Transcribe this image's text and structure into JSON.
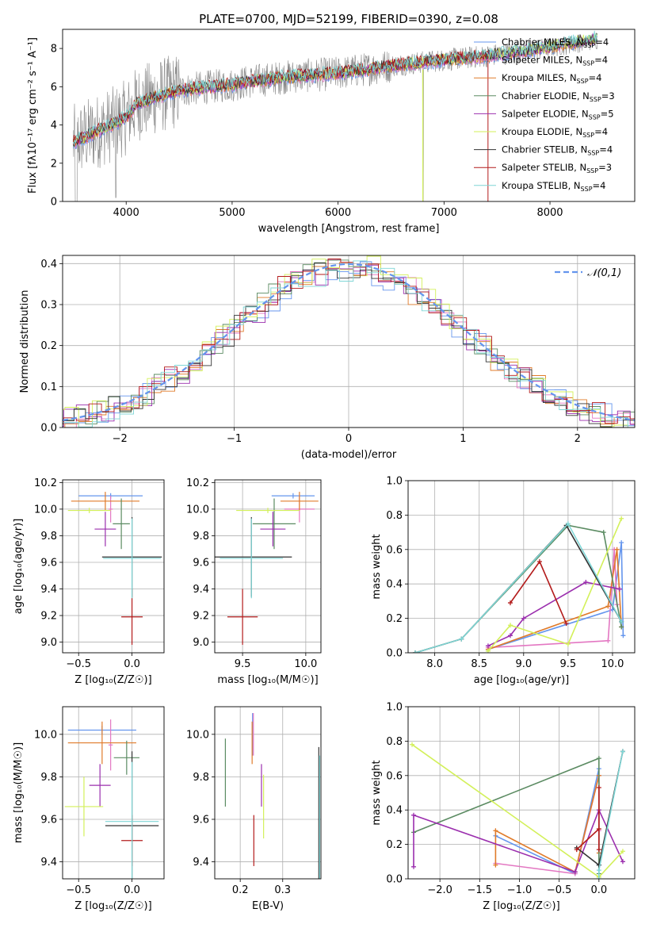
{
  "figure": {
    "title": "PLATE=0700, MJD=52199, FIBERID=0390, z=0.08"
  },
  "palette": [
    "#6495ed",
    "#e377c2",
    "#e07b2a",
    "#5b8b62",
    "#9b2fae",
    "#d3f05a",
    "#333333",
    "#b31b1b",
    "#7fd6d6"
  ],
  "models": [
    {
      "name": "Chabrier MILES, N_SSP=4",
      "label": "Chabrier MILES, N",
      "sub": "SSP",
      "n": "=4",
      "color": "#6495ed"
    },
    {
      "name": "Salpeter MILES, N_SSP=4",
      "label": "Salpeter MILES, N",
      "sub": "SSP",
      "n": "=4",
      "color": "#e377c2"
    },
    {
      "name": "Kroupa MILES, N_SSP=4",
      "label": "Kroupa MILES, N",
      "sub": "SSP",
      "n": "=4",
      "color": "#e07b2a"
    },
    {
      "name": "Chabrier ELODIE, N_SSP=3",
      "label": "Chabrier ELODIE, N",
      "sub": "SSP",
      "n": "=3",
      "color": "#5b8b62"
    },
    {
      "name": "Salpeter ELODIE, N_SSP=5",
      "label": "Salpeter ELODIE, N",
      "sub": "SSP",
      "n": "=5",
      "color": "#9b2fae"
    },
    {
      "name": "Kroupa ELODIE, N_SSP=4",
      "label": "Kroupa ELODIE, N",
      "sub": "SSP",
      "n": "=4",
      "color": "#d3f05a"
    },
    {
      "name": "Chabrier STELIB, N_SSP=4",
      "label": "Chabrier STELIB, N",
      "sub": "SSP",
      "n": "=4",
      "color": "#333333"
    },
    {
      "name": "Salpeter STELIB, N_SSP=3",
      "label": "Salpeter STELIB, N",
      "sub": "SSP",
      "n": "=3",
      "color": "#b31b1b"
    },
    {
      "name": "Kroupa STELIB, N_SSP=4",
      "label": "Kroupa STELIB, N",
      "sub": "SSP",
      "n": "=4",
      "color": "#7fd6d6"
    }
  ],
  "chart_data": [
    {
      "id": "spectrum",
      "type": "line",
      "xlabel": "wavelength [Angstrom, rest frame]",
      "ylabel": "Flux [fλ10⁻¹⁷ erg cm⁻² s⁻¹ A⁻¹]",
      "xlim": [
        3400,
        8800
      ],
      "ylim": [
        0,
        9
      ],
      "xticks": [
        4000,
        5000,
        6000,
        7000,
        8000
      ],
      "yticks": [
        0,
        2,
        4,
        6,
        8
      ],
      "grid": false,
      "legend_position": "right",
      "continuum": [
        [
          3500,
          3.1
        ],
        [
          3700,
          3.6
        ],
        [
          3900,
          4.1
        ],
        [
          4000,
          4.4
        ],
        [
          4100,
          5.1
        ],
        [
          4300,
          5.5
        ],
        [
          4500,
          5.8
        ],
        [
          4800,
          6.0
        ],
        [
          5000,
          6.1
        ],
        [
          5200,
          6.3
        ],
        [
          5500,
          6.5
        ],
        [
          6000,
          6.7
        ],
        [
          6500,
          7.1
        ],
        [
          7000,
          7.4
        ],
        [
          7400,
          7.6
        ],
        [
          7800,
          7.9
        ],
        [
          8200,
          8.3
        ],
        [
          8500,
          8.6
        ]
      ]
    },
    {
      "id": "residuals",
      "type": "line",
      "xlabel": "(data-model)/error",
      "ylabel": "Normed distribution",
      "xlim": [
        -2.5,
        2.5
      ],
      "ylim": [
        0,
        0.42
      ],
      "xticks": [
        -2,
        -1,
        0,
        1,
        2
      ],
      "yticks": [
        0.0,
        0.1,
        0.2,
        0.3,
        0.4
      ],
      "grid": true,
      "reference_curve": "𝒩(0,1)",
      "legend_position": "top-right"
    },
    {
      "id": "age_Z",
      "type": "scatter",
      "xlabel": "Z [log₁₀(Z/Z☉)]",
      "ylabel": "age  [log₁₀(age/yr)]",
      "xlim": [
        -0.65,
        0.3
      ],
      "ylim": [
        8.92,
        10.22
      ],
      "xticks": [
        -0.5,
        0.0
      ],
      "yticks": [
        9.0,
        9.2,
        9.4,
        9.6,
        9.8,
        10.0,
        10.2
      ],
      "grid": true,
      "points": [
        {
          "model": 0,
          "x": -0.2,
          "xerr": 0.3,
          "y": 10.1,
          "yerr": 0.02
        },
        {
          "model": 1,
          "x": -0.2,
          "xerr": 0.02,
          "y": 10.0,
          "yerr": 0.1
        },
        {
          "model": 2,
          "x": -0.25,
          "xerr": 0.32,
          "y": 10.06,
          "yerr": 0.07
        },
        {
          "model": 3,
          "x": -0.1,
          "xerr": 0.08,
          "y": 9.89,
          "yerr": 0.19
        },
        {
          "model": 4,
          "x": -0.25,
          "xerr": 0.1,
          "y": 9.85,
          "yerr": 0.13
        },
        {
          "model": 5,
          "x": -0.4,
          "xerr": 0.2,
          "y": 9.99,
          "yerr": 0.02
        },
        {
          "model": 6,
          "x": 0.0,
          "xerr": 0.28,
          "y": 9.64,
          "yerr": 0.3
        },
        {
          "model": 7,
          "x": 0.0,
          "xerr": 0.1,
          "y": 9.19,
          "yerr": 0.21
        },
        {
          "model": 8,
          "x": 0.0,
          "xerr": 0.27,
          "y": 9.63,
          "yerr": 0.3
        }
      ]
    },
    {
      "id": "age_mass",
      "type": "scatter",
      "xlabel": "mass [log₁₀(M/M☉)]",
      "ylabel": "",
      "xlim": [
        9.28,
        10.12
      ],
      "ylim": [
        8.92,
        10.22
      ],
      "xticks": [
        9.5,
        10.0
      ],
      "yticks": [
        9.0,
        9.2,
        9.4,
        9.6,
        9.8,
        10.0,
        10.2
      ],
      "grid": true,
      "points": [
        {
          "model": 0,
          "x": 9.9,
          "xerr": 0.17,
          "y": 10.1,
          "yerr": 0.02
        },
        {
          "model": 1,
          "x": 9.95,
          "xerr": 0.12,
          "y": 10.0,
          "yerr": 0.1
        },
        {
          "model": 2,
          "x": 9.95,
          "xerr": 0.15,
          "y": 10.06,
          "yerr": 0.07
        },
        {
          "model": 3,
          "x": 9.75,
          "xerr": 0.17,
          "y": 9.89,
          "yerr": 0.19
        },
        {
          "model": 4,
          "x": 9.74,
          "xerr": 0.1,
          "y": 9.85,
          "yerr": 0.13
        },
        {
          "model": 5,
          "x": 9.7,
          "xerr": 0.25,
          "y": 9.99,
          "yerr": 0.02
        },
        {
          "model": 6,
          "x": 9.57,
          "xerr": 0.32,
          "y": 9.64,
          "yerr": 0.3
        },
        {
          "model": 7,
          "x": 9.5,
          "xerr": 0.12,
          "y": 9.19,
          "yerr": 0.21
        },
        {
          "model": 8,
          "x": 9.57,
          "xerr": 0.25,
          "y": 9.63,
          "yerr": 0.3
        }
      ]
    },
    {
      "id": "weight_age",
      "type": "line",
      "xlabel": "age  [log₁₀(age/yr)]",
      "ylabel": "mass weight",
      "xlim": [
        7.7,
        10.25
      ],
      "ylim": [
        0,
        1
      ],
      "xticks": [
        8.0,
        8.5,
        9.0,
        9.5,
        10.0
      ],
      "yticks": [
        0.0,
        0.2,
        0.4,
        0.6,
        0.8,
        1.0
      ],
      "grid": true,
      "series": [
        {
          "model": 0,
          "x": [
            8.6,
            10.0,
            10.1,
            10.12
          ],
          "y": [
            0.02,
            0.25,
            0.64,
            0.1
          ]
        },
        {
          "model": 1,
          "x": [
            8.6,
            9.95,
            10.02,
            10.05
          ],
          "y": [
            0.03,
            0.07,
            0.6,
            0.28
          ]
        },
        {
          "model": 2,
          "x": [
            8.6,
            9.95,
            10.05,
            10.1
          ],
          "y": [
            0.02,
            0.27,
            0.6,
            0.15
          ]
        },
        {
          "model": 3,
          "x": [
            7.78,
            8.3,
            9.5,
            9.9,
            10.1
          ],
          "y": [
            0.0,
            0.08,
            0.74,
            0.7,
            0.15
          ]
        },
        {
          "model": 4,
          "x": [
            8.6,
            8.85,
            9.0,
            9.7,
            10.08
          ],
          "y": [
            0.04,
            0.1,
            0.2,
            0.41,
            0.37
          ]
        },
        {
          "model": 5,
          "x": [
            8.6,
            8.85,
            9.5,
            10.1
          ],
          "y": [
            0.01,
            0.16,
            0.05,
            0.78
          ]
        },
        {
          "model": 6,
          "x": [
            7.78,
            8.3,
            9.48,
            10.1
          ],
          "y": [
            0.0,
            0.08,
            0.74,
            0.18
          ]
        },
        {
          "model": 7,
          "x": [
            8.85,
            9.18,
            9.48
          ],
          "y": [
            0.29,
            0.53,
            0.17
          ]
        },
        {
          "model": 8,
          "x": [
            7.78,
            8.3,
            9.5,
            10.1
          ],
          "y": [
            0.0,
            0.08,
            0.75,
            0.18
          ]
        }
      ]
    },
    {
      "id": "mass_Z",
      "type": "scatter",
      "xlabel": "Z [log₁₀(Z/Z☉)]",
      "ylabel": "mass [log₁₀(M/M☉)]",
      "xlim": [
        -0.65,
        0.3
      ],
      "ylim": [
        9.32,
        10.13
      ],
      "xticks": [
        -0.5,
        0.0
      ],
      "yticks": [
        9.4,
        9.6,
        9.8,
        10.0
      ],
      "grid": true,
      "points": [
        {
          "model": 0,
          "x": -0.28,
          "xerr": 0.32,
          "y": 10.02,
          "yerr": 0.02
        },
        {
          "model": 1,
          "x": -0.2,
          "xerr": 0.02,
          "y": 9.95,
          "yerr": 0.12
        },
        {
          "model": 2,
          "x": -0.28,
          "xerr": 0.32,
          "y": 9.96,
          "yerr": 0.1
        },
        {
          "model": 3,
          "x": -0.05,
          "xerr": 0.12,
          "y": 9.89,
          "yerr": 0.08
        },
        {
          "model": 4,
          "x": -0.3,
          "xerr": 0.1,
          "y": 9.76,
          "yerr": 0.1
        },
        {
          "model": 5,
          "x": -0.45,
          "xerr": 0.18,
          "y": 9.66,
          "yerr": 0.14
        },
        {
          "model": 6,
          "x": 0.0,
          "xerr": 0.25,
          "y": 9.57,
          "yerr": 0.35
        },
        {
          "model": 7,
          "x": 0.0,
          "xerr": 0.1,
          "y": 9.5,
          "yerr": 0.12
        },
        {
          "model": 8,
          "x": 0.0,
          "xerr": 0.25,
          "y": 9.59,
          "yerr": 0.28
        }
      ]
    },
    {
      "id": "mass_ebv",
      "type": "scatter",
      "xlabel": "E(B-V)",
      "ylabel": "",
      "xlim": [
        0.14,
        0.39
      ],
      "ylim": [
        9.32,
        10.13
      ],
      "xticks": [
        0.2,
        0.3
      ],
      "yticks": [
        9.4,
        9.6,
        9.8,
        10.0
      ],
      "grid": true,
      "points": [
        {
          "model": 0,
          "x": 0.229,
          "xerr": 0,
          "y": 10.0,
          "yerr": 0.1
        },
        {
          "model": 1,
          "x": 0.231,
          "xerr": 0,
          "y": 10.0,
          "yerr": 0.1
        },
        {
          "model": 2,
          "x": 0.228,
          "xerr": 0,
          "y": 9.96,
          "yerr": 0.1
        },
        {
          "model": 3,
          "x": 0.165,
          "xerr": 0,
          "y": 9.82,
          "yerr": 0.16
        },
        {
          "model": 4,
          "x": 0.25,
          "xerr": 0,
          "y": 9.76,
          "yerr": 0.1
        },
        {
          "model": 5,
          "x": 0.255,
          "xerr": 0,
          "y": 9.66,
          "yerr": 0.15
        },
        {
          "model": 6,
          "x": 0.385,
          "xerr": 0,
          "y": 9.57,
          "yerr": 0.37
        },
        {
          "model": 7,
          "x": 0.232,
          "xerr": 0,
          "y": 9.5,
          "yerr": 0.12
        },
        {
          "model": 8,
          "x": 0.387,
          "xerr": 0,
          "y": 9.6,
          "yerr": 0.3
        }
      ]
    },
    {
      "id": "weight_Z",
      "type": "line",
      "xlabel": "Z [log₁₀(Z/Z☉)]",
      "ylabel": "mass weight",
      "xlim": [
        -2.4,
        0.45
      ],
      "ylim": [
        0,
        1
      ],
      "xticks": [
        -2.0,
        -1.5,
        -1.0,
        -0.5,
        0.0
      ],
      "yticks": [
        0.0,
        0.2,
        0.4,
        0.6,
        0.8,
        1.0
      ],
      "grid": true,
      "series": [
        {
          "model": 0,
          "x": [
            -1.3,
            -0.3,
            0.0,
            0.0
          ],
          "y": [
            0.25,
            0.03,
            0.64,
            0.08
          ]
        },
        {
          "model": 1,
          "x": [
            -1.3,
            -0.3,
            0.0,
            0.0
          ],
          "y": [
            0.09,
            0.03,
            0.6,
            0.28
          ]
        },
        {
          "model": 2,
          "x": [
            -1.3,
            -1.3,
            -0.3,
            0.0,
            0.0
          ],
          "y": [
            0.08,
            0.28,
            0.04,
            0.6,
            0.15
          ]
        },
        {
          "model": 3,
          "x": [
            -2.33,
            0.0,
            0.0
          ],
          "y": [
            0.27,
            0.7,
            0.03
          ]
        },
        {
          "model": 4,
          "x": [
            -2.33,
            -2.33,
            -0.3,
            0.0,
            0.3
          ],
          "y": [
            0.07,
            0.37,
            0.04,
            0.4,
            0.1
          ]
        },
        {
          "model": 5,
          "x": [
            -2.35,
            0.0,
            0.3
          ],
          "y": [
            0.78,
            0.01,
            0.16
          ]
        },
        {
          "model": 6,
          "x": [
            -0.28,
            0.0,
            0.3
          ],
          "y": [
            0.18,
            0.08,
            0.74
          ]
        },
        {
          "model": 7,
          "x": [
            -0.28,
            0.0,
            0.0,
            0.0
          ],
          "y": [
            0.17,
            0.29,
            0.53,
            0.17
          ]
        },
        {
          "model": 8,
          "x": [
            0.0,
            0.0,
            0.3
          ],
          "y": [
            0.0,
            0.05,
            0.74
          ]
        }
      ]
    }
  ]
}
